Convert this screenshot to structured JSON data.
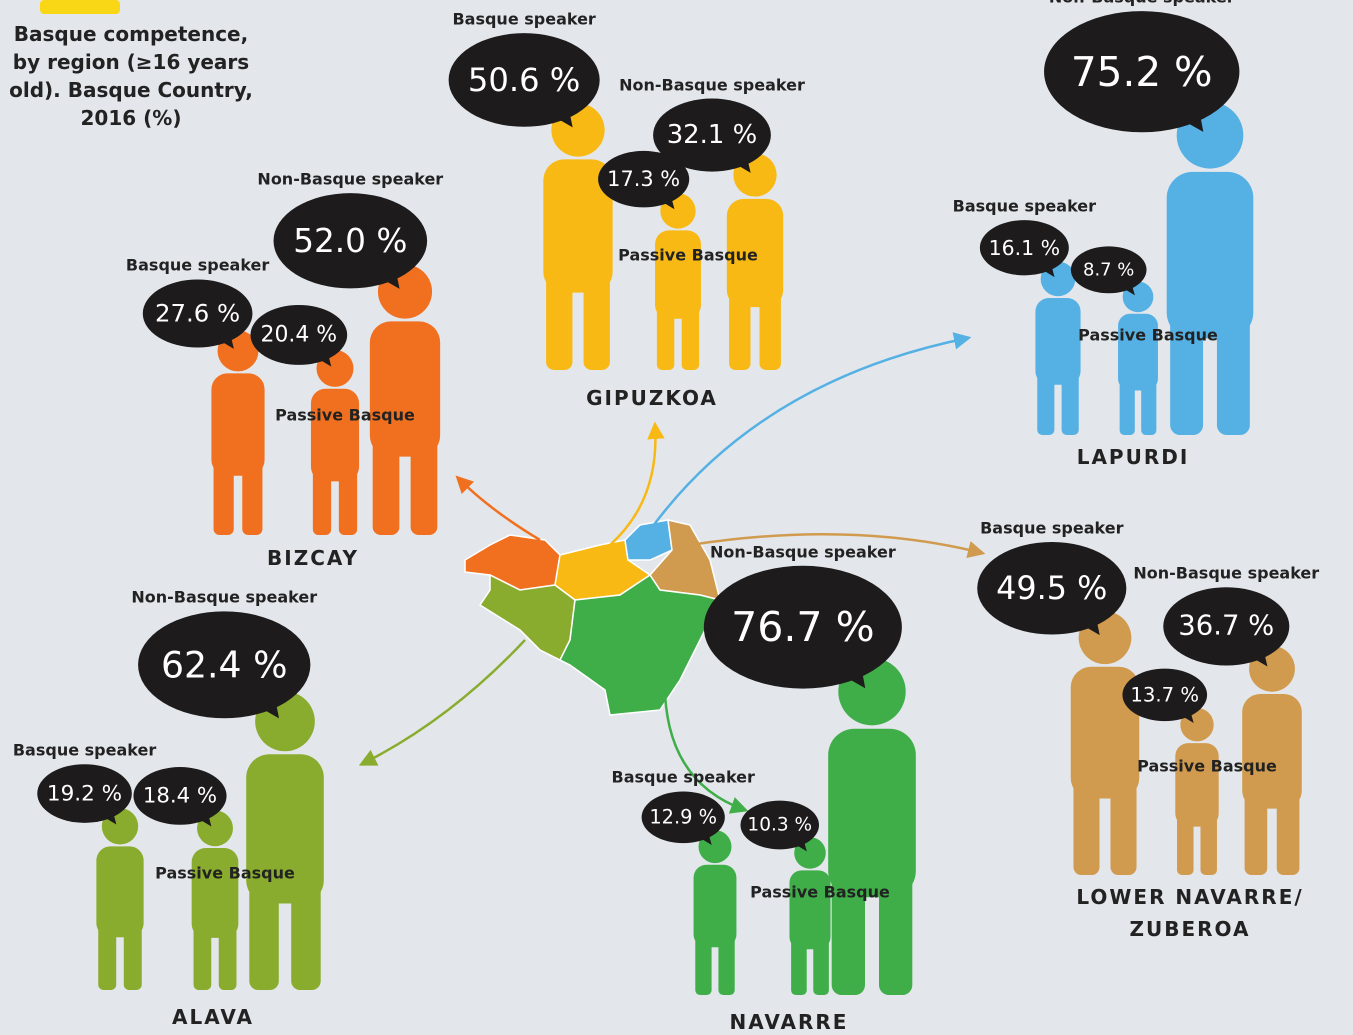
{
  "title": "Basque competence, by region (≥16 years old). Basque Country, 2016 (%)",
  "regions": [
    {
      "name": "GIPUZKOA",
      "color": "#f9b914",
      "groups": [
        {
          "name": "Basque speaker",
          "value": 50.6,
          "value_label": "50.6 %"
        },
        {
          "name": "Passive Basque",
          "value": 17.3,
          "value_label": "17.3 %"
        },
        {
          "name": "Non-Basque speaker",
          "value": 32.1,
          "value_label": "32.1 %"
        }
      ]
    },
    {
      "name": "BIZCAY",
      "color": "#f07020",
      "groups": [
        {
          "name": "Basque speaker",
          "value": 27.6,
          "value_label": "27.6 %"
        },
        {
          "name": "Passive Basque",
          "value": 20.4,
          "value_label": "20.4 %"
        },
        {
          "name": "Non-Basque speaker",
          "value": 52.0,
          "value_label": "52.0 %"
        }
      ]
    },
    {
      "name": "LAPURDI",
      "color": "#55b0e4",
      "groups": [
        {
          "name": "Basque speaker",
          "value": 16.1,
          "value_label": "16.1 %"
        },
        {
          "name": "Passive Basque",
          "value": 8.7,
          "value_label": "8.7 %"
        },
        {
          "name": "Non-Basque speaker",
          "value": 75.2,
          "value_label": "75.2 %"
        }
      ]
    },
    {
      "name": "LOWER NAVARRE/ ZUBEROA",
      "color": "#d19b4f",
      "groups": [
        {
          "name": "Basque speaker",
          "value": 49.5,
          "value_label": "49.5 %"
        },
        {
          "name": "Passive Basque",
          "value": 13.7,
          "value_label": "13.7 %"
        },
        {
          "name": "Non-Basque speaker",
          "value": 36.7,
          "value_label": "36.7 %"
        }
      ]
    },
    {
      "name": "ALAVA",
      "color": "#8aac2e",
      "groups": [
        {
          "name": "Basque speaker",
          "value": 19.2,
          "value_label": "19.2 %"
        },
        {
          "name": "Passive Basque",
          "value": 18.4,
          "value_label": "18.4 %"
        },
        {
          "name": "Non-Basque speaker",
          "value": 62.4,
          "value_label": "62.4 %"
        }
      ]
    },
    {
      "name": "NAVARRE",
      "color": "#3fae49",
      "groups": [
        {
          "name": "Basque speaker",
          "value": 12.9,
          "value_label": "12.9 %"
        },
        {
          "name": "Passive Basque",
          "value": 10.3,
          "value_label": "10.3 %"
        },
        {
          "name": "Non-Basque speaker",
          "value": 76.7,
          "value_label": "76.7 %"
        }
      ]
    }
  ]
}
